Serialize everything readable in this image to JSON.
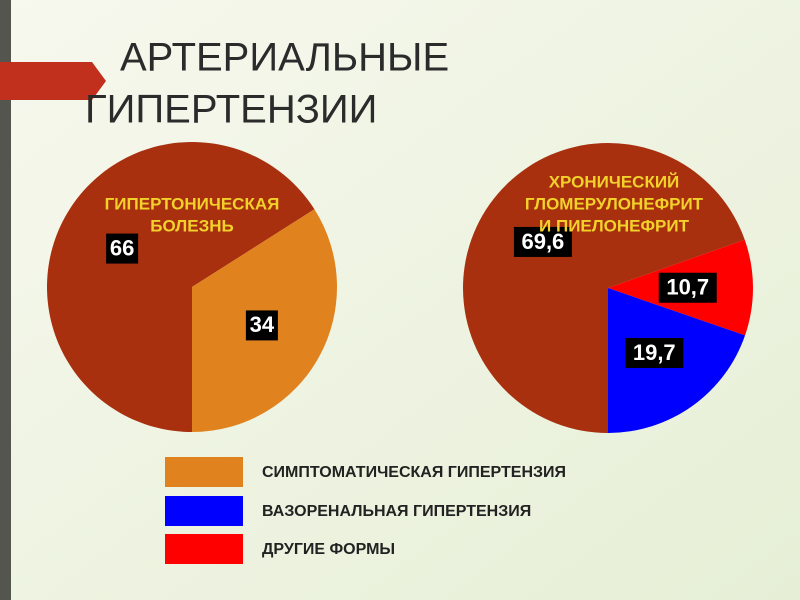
{
  "title": [
    "АРТЕРИАЛЬНЫЕ",
    "ГИПЕРТЕНЗИИ"
  ],
  "chart_data": [
    {
      "type": "pie",
      "title": [
        "ГИПЕРТОНИЧЕСКАЯ",
        "БОЛЕЗНЬ"
      ],
      "values": [
        66,
        34
      ],
      "colors": [
        "#a8300f",
        "#e0821e"
      ]
    },
    {
      "type": "pie",
      "title": [
        "ХРОНИЧЕСКИЙ",
        "ГЛОМЕРУЛОНЕФРИТ",
        "И ПИЕЛОНЕФРИТ"
      ],
      "values": [
        69.6,
        10.7,
        19.7
      ],
      "value_labels": [
        "69,6",
        "10,7",
        "19,7"
      ],
      "colors": [
        "#a8300f",
        "#ff0000",
        "#0000ff"
      ]
    }
  ],
  "legend": [
    {
      "label": "СИМПТОМАТИЧЕСКАЯ ГИПЕРТЕНЗИЯ",
      "color": "#e0821e"
    },
    {
      "label": "ВАЗОРЕНАЛЬНАЯ ГИПЕРТЕНЗИЯ",
      "color": "#0000ff"
    },
    {
      "label": "ДРУГИЕ ФОРМЫ",
      "color": "#ff0000"
    }
  ]
}
